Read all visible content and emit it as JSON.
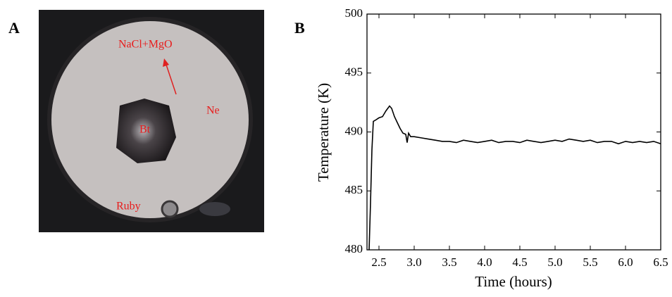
{
  "figure": {
    "panel_a": {
      "label": "A",
      "annotations": [
        "NaCl+MgO",
        "Ne",
        "Bt",
        "Ruby"
      ]
    }
  },
  "chart_data": {
    "type": "line",
    "panel_label": "B",
    "x_label": "Time (hours)",
    "y_label": "Temperature (K)",
    "x": [
      2.36,
      2.38,
      2.4,
      2.42,
      2.45,
      2.5,
      2.55,
      2.6,
      2.65,
      2.68,
      2.72,
      2.76,
      2.8,
      2.84,
      2.88,
      2.9,
      2.92,
      2.95,
      3.0,
      3.1,
      3.2,
      3.3,
      3.4,
      3.5,
      3.6,
      3.7,
      3.8,
      3.9,
      4.0,
      4.1,
      4.2,
      4.3,
      4.4,
      4.5,
      4.6,
      4.7,
      4.8,
      4.9,
      5.0,
      5.1,
      5.2,
      5.3,
      5.4,
      5.5,
      5.6,
      5.7,
      5.8,
      5.9,
      6.0,
      6.1,
      6.2,
      6.3,
      6.4,
      6.5
    ],
    "series": [
      {
        "color": "#000000",
        "values": [
          480,
          484,
          488.5,
          490.9,
          491.0,
          491.2,
          491.3,
          491.8,
          492.2,
          492.0,
          491.3,
          490.8,
          490.3,
          489.9,
          489.8,
          489.1,
          489.9,
          489.6,
          489.6,
          489.5,
          489.4,
          489.3,
          489.2,
          489.2,
          489.1,
          489.3,
          489.2,
          489.1,
          489.2,
          489.3,
          489.1,
          489.2,
          489.2,
          489.1,
          489.3,
          489.2,
          489.1,
          489.2,
          489.3,
          489.2,
          489.4,
          489.3,
          489.2,
          489.3,
          489.1,
          489.2,
          489.2,
          489.0,
          489.2,
          489.1,
          489.2,
          489.1,
          489.2,
          489.0
        ]
      }
    ],
    "xlim": [
      2.33,
      6.5
    ],
    "ylim": [
      480,
      500
    ],
    "xticks": [
      2.5,
      {
        "value": 3,
        "label": "3.0"
      },
      3.5,
      {
        "value": 4,
        "label": "4.0"
      },
      4.5,
      {
        "value": 5,
        "label": "5.0"
      },
      5.5,
      {
        "value": 6,
        "label": "6.0"
      },
      6.5
    ],
    "yticks": [
      480,
      485,
      490,
      495,
      500
    ]
  }
}
